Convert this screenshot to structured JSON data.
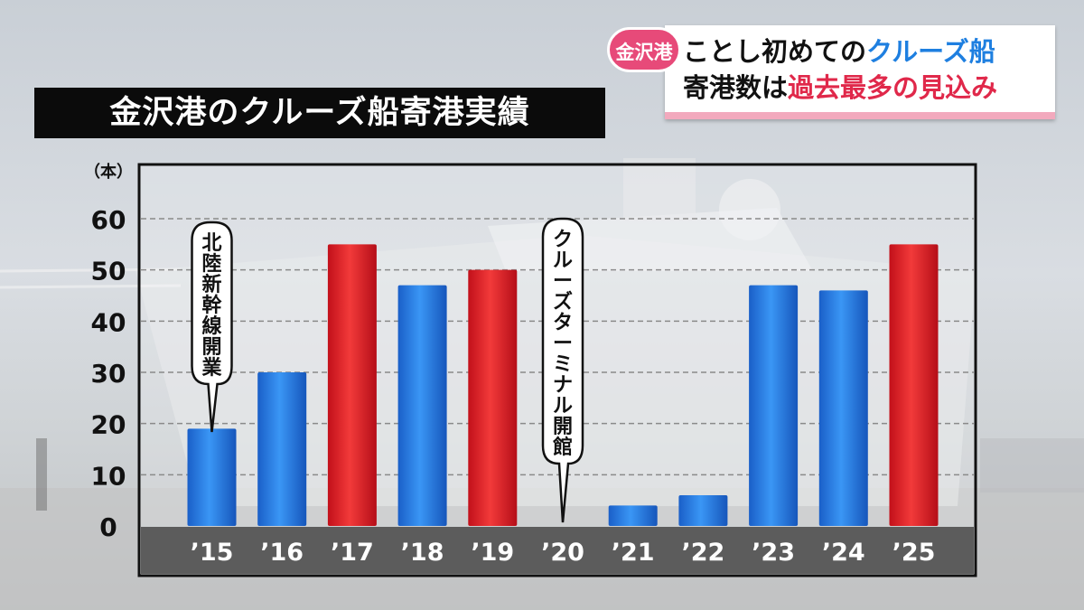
{
  "title": "金沢港のクルーズ船寄港実績",
  "news": {
    "tag": "金沢港",
    "line1_a": "ことし初めての",
    "line1_b": "クルーズ船",
    "line2_a": "寄港数は",
    "line2_b": "過去最多の見込み"
  },
  "colors": {
    "blue": "#1e7be6",
    "red": "#e42020",
    "axis_band": "#5c5c5c"
  },
  "chart_data": {
    "type": "bar",
    "unit_label": "（本）",
    "categories": [
      "’15",
      "’16",
      "’17",
      "’18",
      "’19",
      "’20",
      "’21",
      "’22",
      "’23",
      "’24",
      "’25"
    ],
    "values": [
      19,
      30,
      55,
      47,
      50,
      0,
      4,
      6,
      47,
      46,
      55
    ],
    "bar_colors": [
      "blue",
      "blue",
      "red",
      "blue",
      "red",
      "blue",
      "blue",
      "blue",
      "blue",
      "blue",
      "red"
    ],
    "ylim": [
      0,
      60
    ],
    "yticks": [
      0,
      10,
      20,
      30,
      40,
      50,
      60
    ],
    "grid": true,
    "annotations": [
      {
        "category": "’15",
        "text": "北陸新幹線開業"
      },
      {
        "category": "’20",
        "text": "クルーズターミナル開館"
      }
    ]
  }
}
